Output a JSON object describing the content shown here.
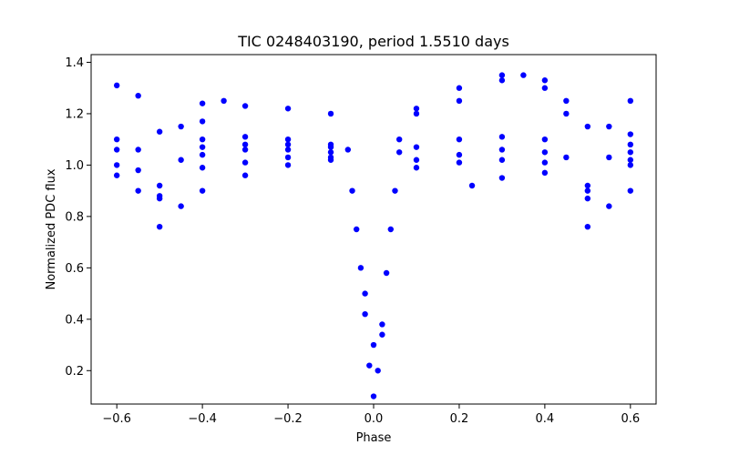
{
  "chart_data": {
    "type": "scatter",
    "title": "TIC 0248403190, period 1.5510 days",
    "xlabel": "Phase",
    "ylabel": "Normalized PDC flux",
    "xlim": [
      -0.66,
      0.66
    ],
    "ylim": [
      0.07,
      1.43
    ],
    "xticks": [
      -0.6,
      -0.4,
      -0.2,
      0.0,
      0.2,
      0.4,
      0.6
    ],
    "xtick_labels": [
      "−0.6",
      "−0.4",
      "−0.2",
      "0.0",
      "0.2",
      "0.4",
      "0.6"
    ],
    "yticks": [
      0.2,
      0.4,
      0.6,
      0.8,
      1.0,
      1.2,
      1.4
    ],
    "ytick_labels": [
      "0.2",
      "0.4",
      "0.6",
      "0.8",
      "1.0",
      "1.2",
      "1.4"
    ],
    "grid": false,
    "legend": "none",
    "marker_color": "#0000ff",
    "x_range_data": [
      -0.6,
      0.6
    ],
    "features": {
      "primary_eclipse": {
        "phase": 0.0,
        "min_flux": 0.1
      },
      "secondary_eclipse": {
        "phase": [
          -0.5,
          0.5
        ],
        "min_flux": 0.86
      },
      "baseline_flux": 1.06,
      "spot_modulation_max": 1.36,
      "lowest_track_min": 0.75
    },
    "series": [
      {
        "points": [
          [
            -0.6,
            1.1
          ],
          [
            -0.55,
            1.06
          ],
          [
            -0.5,
            0.87
          ],
          [
            -0.45,
            1.02
          ],
          [
            -0.4,
            1.1
          ],
          [
            -0.3,
            1.11
          ],
          [
            -0.2,
            1.1
          ],
          [
            -0.1,
            1.08
          ],
          [
            -0.06,
            1.06
          ],
          [
            -0.6,
            1.0
          ],
          [
            -0.55,
            0.98
          ],
          [
            -0.5,
            0.92
          ],
          [
            -0.4,
            1.04
          ],
          [
            -0.3,
            1.06
          ],
          [
            -0.2,
            1.06
          ],
          [
            -0.1,
            1.05
          ],
          [
            -0.6,
            1.06
          ],
          [
            -0.5,
            0.88
          ],
          [
            -0.4,
            1.07
          ],
          [
            -0.3,
            1.08
          ],
          [
            -0.2,
            1.08
          ],
          [
            -0.1,
            1.07
          ],
          [
            -0.6,
            1.31
          ],
          [
            -0.55,
            1.27
          ],
          [
            -0.5,
            1.13
          ],
          [
            -0.45,
            1.15
          ],
          [
            -0.4,
            1.17
          ],
          [
            -0.6,
            0.96
          ],
          [
            -0.55,
            0.9
          ],
          [
            -0.5,
            0.76
          ],
          [
            -0.45,
            0.84
          ],
          [
            -0.4,
            0.9
          ],
          [
            -0.3,
            0.96
          ],
          [
            -0.2,
            1.0
          ],
          [
            -0.1,
            1.02
          ],
          [
            -0.4,
            1.24
          ],
          [
            -0.35,
            1.25
          ],
          [
            -0.3,
            1.23
          ],
          [
            -0.2,
            1.22
          ],
          [
            -0.1,
            1.2
          ],
          [
            -0.4,
            0.99
          ],
          [
            -0.3,
            1.01
          ],
          [
            -0.2,
            1.03
          ],
          [
            -0.1,
            1.03
          ],
          [
            -0.05,
            0.9
          ],
          [
            -0.04,
            0.75
          ],
          [
            -0.03,
            0.6
          ],
          [
            -0.02,
            0.42
          ],
          [
            -0.01,
            0.22
          ],
          [
            0.0,
            0.1
          ],
          [
            0.01,
            0.2
          ],
          [
            0.02,
            0.38
          ],
          [
            0.03,
            0.58
          ],
          [
            0.04,
            0.75
          ],
          [
            0.05,
            0.9
          ],
          [
            -0.02,
            0.5
          ],
          [
            0.0,
            0.3
          ],
          [
            0.02,
            0.34
          ],
          [
            0.06,
            1.1
          ],
          [
            0.06,
            1.05
          ],
          [
            0.1,
            1.07
          ],
          [
            0.2,
            1.1
          ],
          [
            0.3,
            1.11
          ],
          [
            0.4,
            1.1
          ],
          [
            0.45,
            1.03
          ],
          [
            0.5,
            0.87
          ],
          [
            0.55,
            1.03
          ],
          [
            0.6,
            1.08
          ],
          [
            0.1,
            1.02
          ],
          [
            0.2,
            1.04
          ],
          [
            0.3,
            1.06
          ],
          [
            0.4,
            1.05
          ],
          [
            0.5,
            0.92
          ],
          [
            0.6,
            1.02
          ],
          [
            0.1,
            1.2
          ],
          [
            0.2,
            1.25
          ],
          [
            0.3,
            1.33
          ],
          [
            0.35,
            1.35
          ],
          [
            0.4,
            1.3
          ],
          [
            0.45,
            1.2
          ],
          [
            0.1,
            1.22
          ],
          [
            0.2,
            1.3
          ],
          [
            0.3,
            1.35
          ],
          [
            0.4,
            1.33
          ],
          [
            0.45,
            1.25
          ],
          [
            0.5,
            1.15
          ],
          [
            0.55,
            1.15
          ],
          [
            0.6,
            1.25
          ],
          [
            0.23,
            0.92
          ],
          [
            0.3,
            0.95
          ],
          [
            0.4,
            0.97
          ],
          [
            0.5,
            0.76
          ],
          [
            0.55,
            0.84
          ],
          [
            0.6,
            0.9
          ],
          [
            0.1,
            0.99
          ],
          [
            0.2,
            1.01
          ],
          [
            0.3,
            1.02
          ],
          [
            0.4,
            1.01
          ],
          [
            0.5,
            0.9
          ],
          [
            0.6,
            1.0
          ],
          [
            0.6,
            1.05
          ],
          [
            0.6,
            1.12
          ]
        ]
      }
    ]
  }
}
